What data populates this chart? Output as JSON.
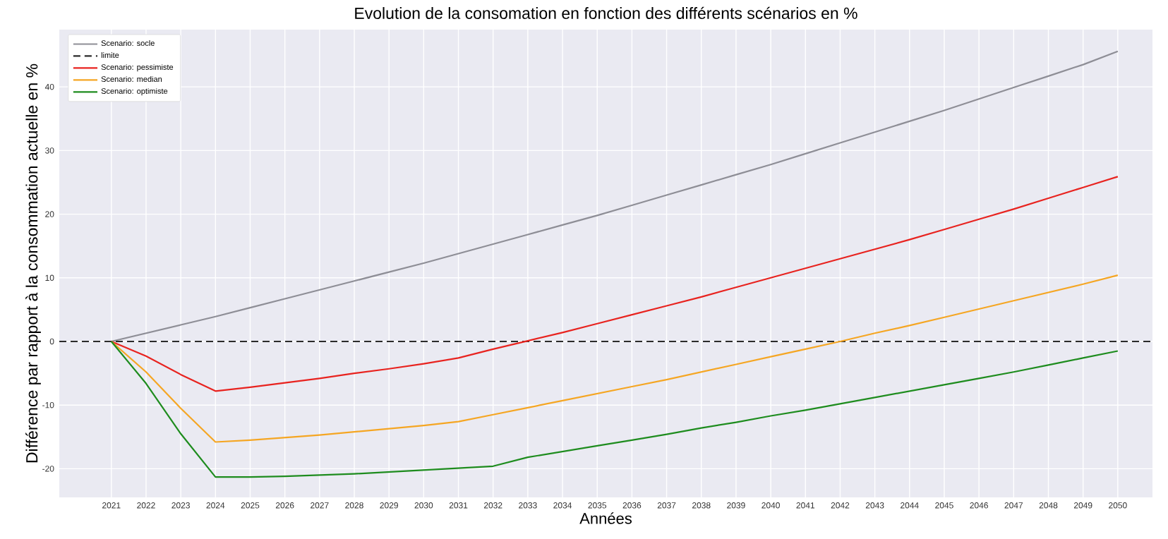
{
  "chart_data": {
    "type": "line",
    "title": "Evolution de la consomation en fonction des différents scénarios en %",
    "xlabel": "Années",
    "ylabel": "Différence par rapport à la consommation actuelle en %",
    "x": [
      2021,
      2022,
      2023,
      2024,
      2025,
      2026,
      2027,
      2028,
      2029,
      2030,
      2031,
      2032,
      2033,
      2034,
      2035,
      2036,
      2037,
      2038,
      2039,
      2040,
      2041,
      2042,
      2043,
      2044,
      2045,
      2046,
      2047,
      2048,
      2049,
      2050
    ],
    "series": [
      {
        "name": "Scenario: socle",
        "color": "#8e8e96",
        "values": [
          0,
          1.3,
          2.6,
          3.9,
          5.3,
          6.7,
          8.1,
          9.5,
          10.9,
          12.3,
          13.8,
          15.3,
          16.8,
          18.3,
          19.8,
          21.4,
          23.0,
          24.6,
          26.2,
          27.8,
          29.5,
          31.2,
          32.9,
          34.6,
          36.3,
          38.1,
          39.9,
          41.7,
          43.5,
          45.6
        ]
      },
      {
        "name": "Scenario: pessimiste",
        "color": "#e8231f",
        "values": [
          0,
          -2.3,
          -5.2,
          -7.8,
          -7.2,
          -6.5,
          -5.8,
          -5.0,
          -4.3,
          -3.5,
          -2.6,
          -1.2,
          0.1,
          1.4,
          2.8,
          4.2,
          5.6,
          7.0,
          8.5,
          10.0,
          11.5,
          13.0,
          14.5,
          16.0,
          17.6,
          19.2,
          20.8,
          22.5,
          24.2,
          25.9
        ]
      },
      {
        "name": "Scenario: median",
        "color": "#f5a623",
        "values": [
          0,
          -4.8,
          -10.5,
          -15.8,
          -15.5,
          -15.1,
          -14.7,
          -14.2,
          -13.7,
          -13.2,
          -12.6,
          -11.5,
          -10.4,
          -9.3,
          -8.2,
          -7.1,
          -6.0,
          -4.8,
          -3.6,
          -2.4,
          -1.2,
          0.0,
          1.3,
          2.5,
          3.8,
          5.1,
          6.4,
          7.7,
          9.0,
          10.4
        ]
      },
      {
        "name": "Scenario: optimiste",
        "color": "#1e8c1e",
        "values": [
          0,
          -6.6,
          -14.5,
          -21.3,
          -21.3,
          -21.2,
          -21.0,
          -20.8,
          -20.5,
          -20.2,
          -19.9,
          -19.6,
          -18.2,
          -17.3,
          -16.4,
          -15.5,
          -14.6,
          -13.6,
          -12.7,
          -11.7,
          -10.8,
          -9.8,
          -8.8,
          -7.8,
          -6.8,
          -5.8,
          -4.8,
          -3.7,
          -2.6,
          -1.5
        ]
      }
    ],
    "ref_lines": [
      {
        "axis": "y",
        "value": 0,
        "label": "limite",
        "color": "#2b2b2b",
        "line_style": "dashed"
      }
    ],
    "xlim": [
      2019.5,
      2051.0
    ],
    "ylim": [
      -24.5,
      49
    ],
    "xticks": [
      2021,
      2022,
      2023,
      2024,
      2025,
      2026,
      2027,
      2028,
      2029,
      2030,
      2031,
      2032,
      2033,
      2034,
      2035,
      2036,
      2037,
      2038,
      2039,
      2040,
      2041,
      2042,
      2043,
      2044,
      2045,
      2046,
      2047,
      2048,
      2049,
      2050
    ],
    "yticks": [
      -20,
      -10,
      0,
      10,
      20,
      30,
      40
    ],
    "grid": true,
    "legend": "top left",
    "line_style": "solid",
    "marker": "none"
  }
}
